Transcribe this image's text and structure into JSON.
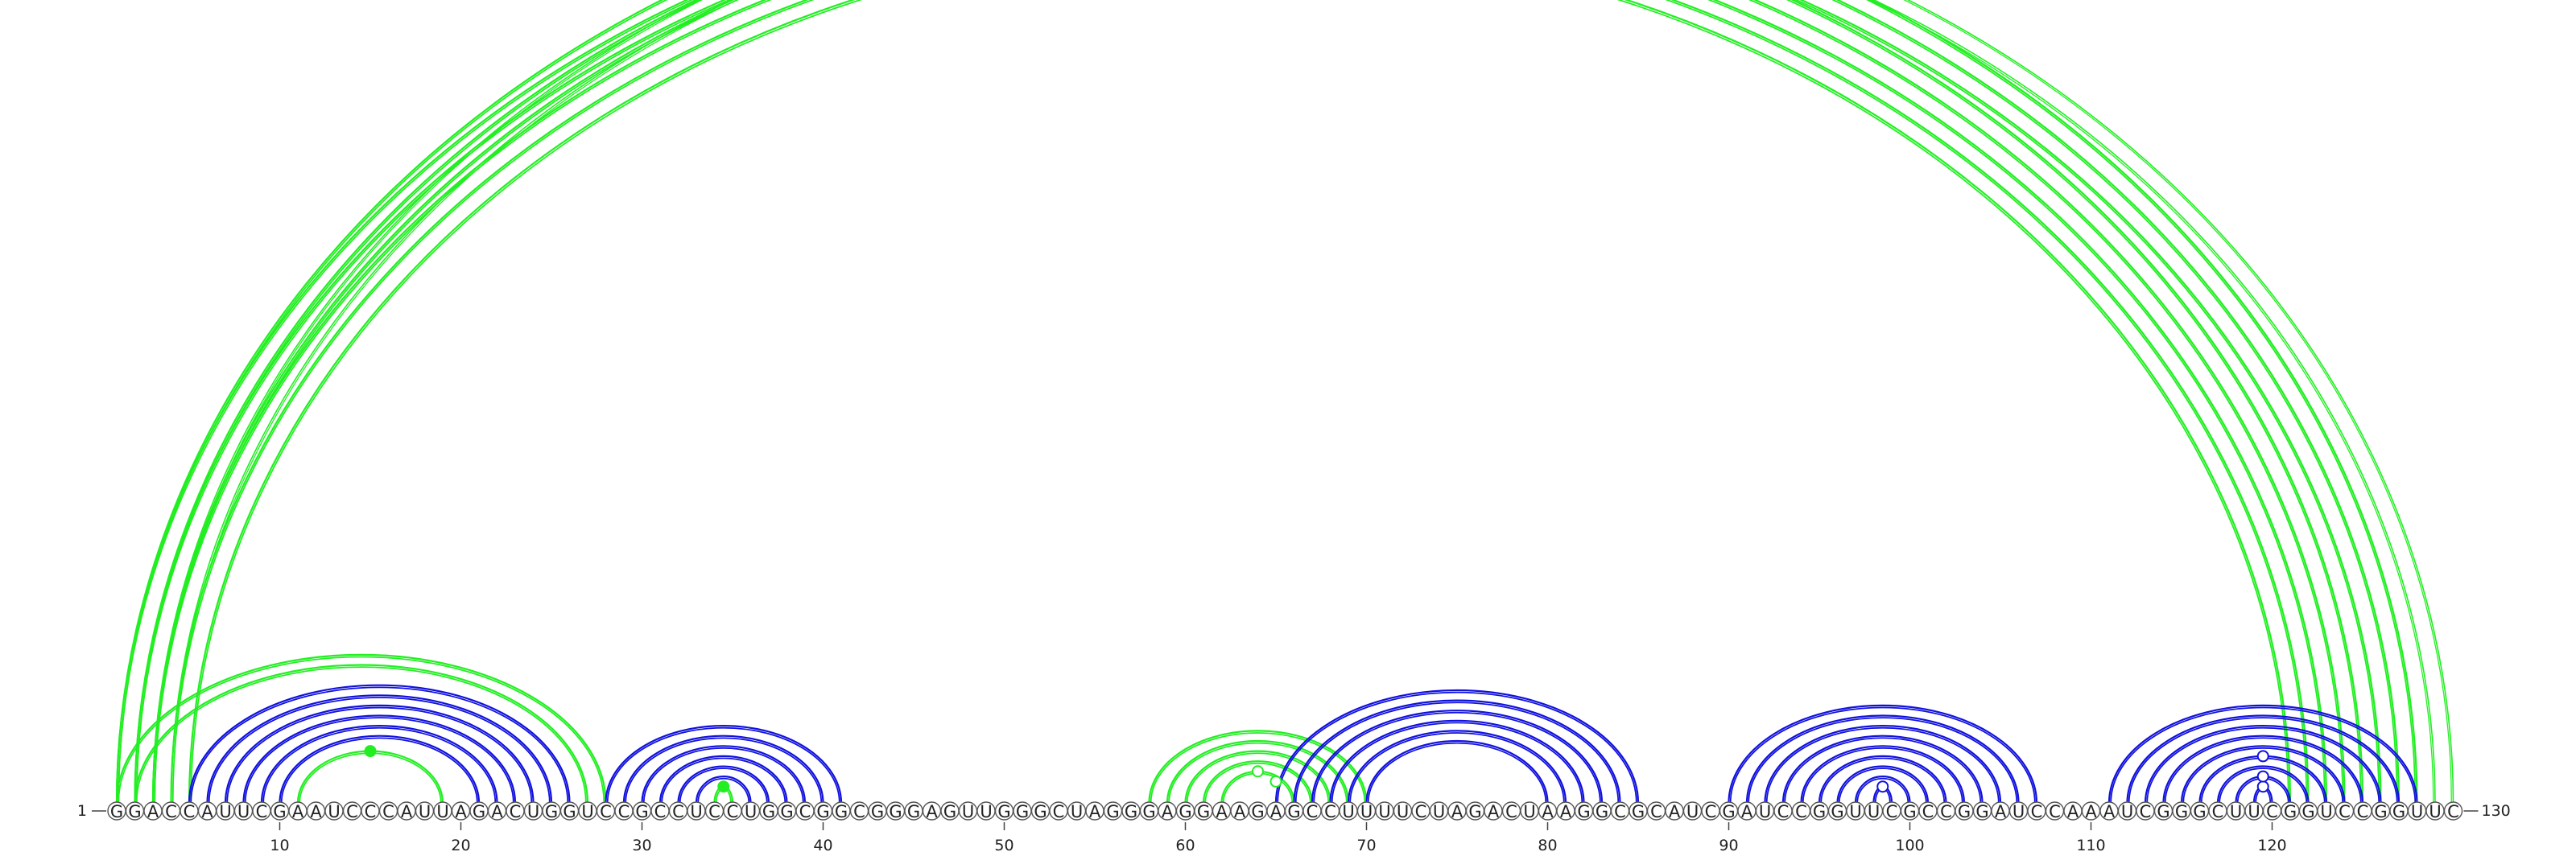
{
  "sequence": "GGACCAUUCGAAUCCCAUUAGACUGGUCCGCCUCCUGGCGGCGGGAGUUGGGCUAGGGAGGAAGAGCCUUUUCUAGACUAAGGCGCAUCGAUCCGGUUCGCCGGAUCCAAAUCGGGCUUCGGUCCGGUUC",
  "start_label": "1",
  "end_label": "130",
  "tick_labels": [
    "10",
    "20",
    "30",
    "40",
    "50",
    "60",
    "70",
    "80",
    "90",
    "100",
    "110",
    "120"
  ],
  "tick_positions": [
    10,
    20,
    30,
    40,
    50,
    60,
    70,
    80,
    90,
    100,
    110,
    120
  ],
  "colors": {
    "pair_type_a": "#22ee22",
    "pair_type_b": "#1111dd"
  },
  "arc_groups": [
    {
      "kind": "green",
      "pairs": [
        [
          1,
          125
        ],
        [
          2,
          124
        ],
        [
          3,
          123
        ],
        [
          4,
          122
        ],
        [
          5,
          121
        ]
      ]
    },
    {
      "kind": "green",
      "pairs": [
        [
          1,
          128
        ],
        [
          2,
          127
        ],
        [
          3,
          126
        ]
      ]
    },
    {
      "kind": "green",
      "pairs": [
        [
          3,
          130
        ],
        [
          4,
          129
        ]
      ],
      "thin": true
    },
    {
      "kind": "green",
      "pairs": [
        [
          1,
          28
        ],
        [
          2,
          27
        ]
      ]
    },
    {
      "kind": "blue",
      "pairs": [
        [
          5,
          26
        ],
        [
          6,
          25
        ],
        [
          7,
          24
        ],
        [
          8,
          23
        ],
        [
          9,
          22
        ],
        [
          10,
          21
        ]
      ]
    },
    {
      "kind": "green",
      "pairs": [
        [
          11,
          19
        ]
      ]
    },
    {
      "kind": "blue",
      "pairs": [
        [
          28,
          41
        ],
        [
          29,
          40
        ],
        [
          30,
          39
        ],
        [
          31,
          38
        ],
        [
          32,
          37
        ],
        [
          33,
          36
        ]
      ]
    },
    {
      "kind": "green",
      "pairs": [
        [
          34,
          35
        ]
      ]
    },
    {
      "kind": "green",
      "pairs": [
        [
          58,
          70
        ],
        [
          59,
          69
        ],
        [
          60,
          68
        ],
        [
          61,
          67
        ],
        [
          62,
          66
        ]
      ]
    },
    {
      "kind": "blue",
      "pairs": [
        [
          65,
          85
        ],
        [
          66,
          84
        ],
        [
          67,
          83
        ],
        [
          68,
          82
        ],
        [
          69,
          81
        ],
        [
          70,
          80
        ]
      ]
    },
    {
      "kind": "blue",
      "pairs": [
        [
          90,
          107
        ],
        [
          91,
          106
        ],
        [
          92,
          105
        ],
        [
          93,
          104
        ],
        [
          94,
          103
        ],
        [
          95,
          102
        ],
        [
          96,
          101
        ],
        [
          97,
          100
        ],
        [
          98,
          99
        ]
      ]
    },
    {
      "kind": "blue",
      "pairs": [
        [
          111,
          128
        ],
        [
          112,
          127
        ],
        [
          113,
          126
        ],
        [
          114,
          125
        ],
        [
          115,
          124
        ],
        [
          116,
          123
        ],
        [
          117,
          122
        ],
        [
          118,
          121
        ],
        [
          119,
          120
        ]
      ]
    }
  ],
  "markers": [
    {
      "kind": "green",
      "i": 64,
      "j": 66,
      "hollow": true
    },
    {
      "kind": "green",
      "i": 11,
      "j": 19,
      "hollow": false
    },
    {
      "kind": "green",
      "i": 34,
      "j": 35,
      "hollow": false
    },
    {
      "kind": "green",
      "i": 62,
      "j": 66,
      "hollow": true
    },
    {
      "kind": "blue",
      "i": 98,
      "j": 99,
      "hollow": true
    },
    {
      "kind": "blue",
      "i": 119,
      "j": 120,
      "hollow": true
    },
    {
      "kind": "blue",
      "i": 118,
      "j": 121,
      "hollow": true
    },
    {
      "kind": "blue",
      "i": 116,
      "j": 123,
      "hollow": true
    }
  ]
}
